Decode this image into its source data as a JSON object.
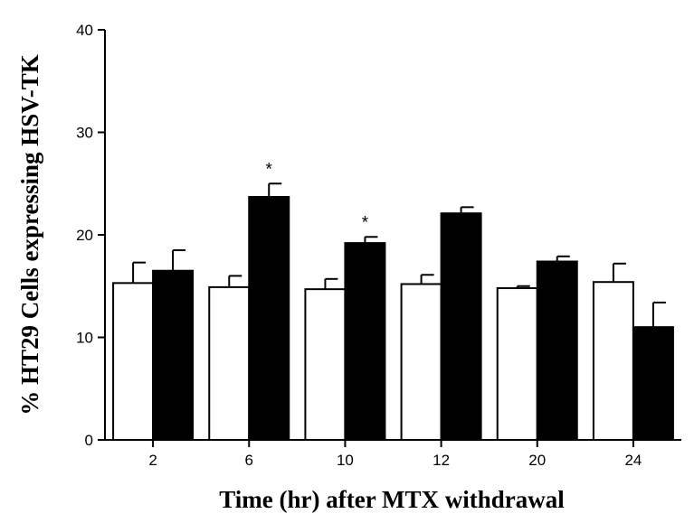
{
  "chart_data": {
    "type": "bar",
    "categories": [
      "2",
      "6",
      "10",
      "12",
      "20",
      "24"
    ],
    "series": [
      {
        "values": [
          15.3,
          14.9,
          14.7,
          15.2,
          14.8,
          15.4
        ],
        "errors": [
          2.0,
          1.1,
          1.0,
          0.9,
          0.2,
          1.8
        ],
        "color": "#ffffff"
      },
      {
        "values": [
          16.5,
          23.7,
          19.2,
          22.1,
          17.4,
          11.0
        ],
        "errors": [
          2.0,
          1.3,
          0.6,
          0.6,
          0.5,
          2.4
        ],
        "color": "#000000"
      }
    ],
    "significance": [
      "",
      "*",
      "*",
      "",
      "",
      ""
    ],
    "xlabel": "Time (hr) after MTX withdrawal",
    "ylabel": "% HT29 Cells expressing HSV-TK",
    "ylim": [
      0,
      40
    ],
    "yticks": [
      "0",
      "10",
      "20",
      "30",
      "40"
    ],
    "grid": false
  }
}
